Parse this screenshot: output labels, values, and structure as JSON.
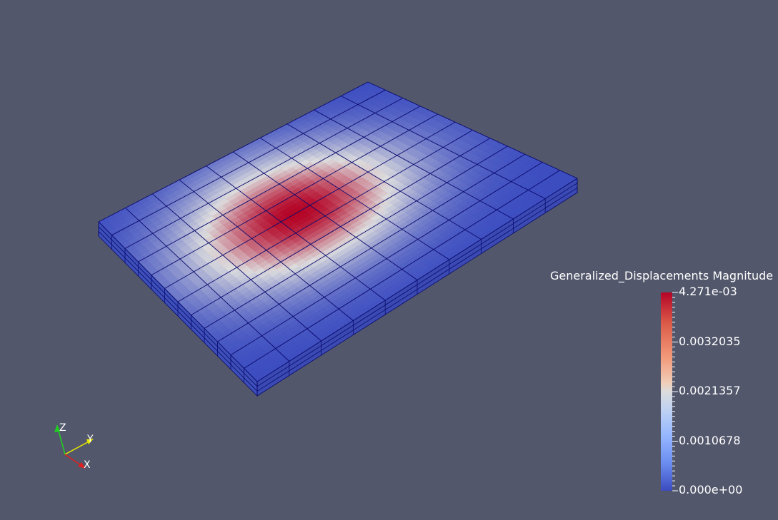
{
  "legend": {
    "title": "Generalized_Displacements Magnitude",
    "ticks": [
      "4.271e-03",
      "0.0032035",
      "0.0021357",
      "0.0010678",
      "0.000e+00"
    ],
    "colormap": [
      "#3b4cc0",
      "#dcdcdd",
      "#b40426"
    ]
  },
  "orientation_axes": {
    "x_label": "X",
    "y_label": "Y",
    "z_label": "Z",
    "x_color": "#e02020",
    "y_color": "#e6e600",
    "z_color": "#20d020"
  },
  "mesh": {
    "cells_u": 12,
    "cells_v": 10,
    "layers": 3,
    "edge_color": "#0a0a6e",
    "peak_position": [
      0.42,
      0.45
    ]
  }
}
